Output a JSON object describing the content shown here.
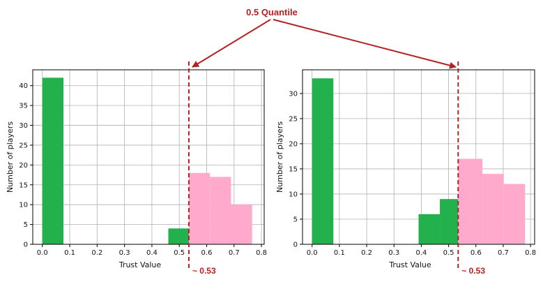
{
  "annotation": {
    "text": "0.5 Quantile",
    "color": "#b22222"
  },
  "colors": {
    "below": "#22b14c",
    "above": "#ffaacc",
    "grid": "#b0b0b0",
    "quantile_line": "#b22222"
  },
  "chart_data": [
    {
      "type": "bar",
      "xlabel": "Trust Value",
      "ylabel": "Number of players",
      "xlim": [
        -0.035,
        0.81
      ],
      "ylim": [
        0,
        44
      ],
      "xticks": [
        "0.0",
        "0.1",
        "0.2",
        "0.3",
        "0.4",
        "0.5",
        "0.6",
        "0.7",
        "0.8"
      ],
      "yticks": [
        "0",
        "5",
        "10",
        "15",
        "20",
        "25",
        "30",
        "35",
        "40"
      ],
      "grid": true,
      "quantile": {
        "value": 0.535,
        "label": "~ 0.53"
      },
      "bars": [
        {
          "x0": 0.0,
          "x1": 0.077,
          "value": 42,
          "group": "below"
        },
        {
          "x0": 0.46,
          "x1": 0.535,
          "value": 4,
          "group": "below"
        },
        {
          "x0": 0.535,
          "x1": 0.612,
          "value": 18,
          "group": "above"
        },
        {
          "x0": 0.612,
          "x1": 0.689,
          "value": 17,
          "group": "above"
        },
        {
          "x0": 0.689,
          "x1": 0.766,
          "value": 10,
          "group": "above"
        }
      ]
    },
    {
      "type": "bar",
      "xlabel": "Trust Value",
      "ylabel": "Number of players",
      "xlim": [
        -0.035,
        0.815
      ],
      "ylim": [
        0,
        34.7
      ],
      "xticks": [
        "0.0",
        "0.1",
        "0.2",
        "0.3",
        "0.4",
        "0.5",
        "0.6",
        "0.7",
        "0.8"
      ],
      "yticks": [
        "0",
        "5",
        "10",
        "15",
        "20",
        "25",
        "30"
      ],
      "grid": true,
      "quantile": {
        "value": 0.535,
        "label": "~ 0.53"
      },
      "bars": [
        {
          "x0": 0.0,
          "x1": 0.078,
          "value": 33,
          "group": "below"
        },
        {
          "x0": 0.39,
          "x1": 0.468,
          "value": 6,
          "group": "below"
        },
        {
          "x0": 0.468,
          "x1": 0.535,
          "value": 9,
          "group": "below"
        },
        {
          "x0": 0.535,
          "x1": 0.624,
          "value": 17,
          "group": "above"
        },
        {
          "x0": 0.624,
          "x1": 0.702,
          "value": 14,
          "group": "above"
        },
        {
          "x0": 0.702,
          "x1": 0.78,
          "value": 12,
          "group": "above"
        }
      ]
    }
  ]
}
